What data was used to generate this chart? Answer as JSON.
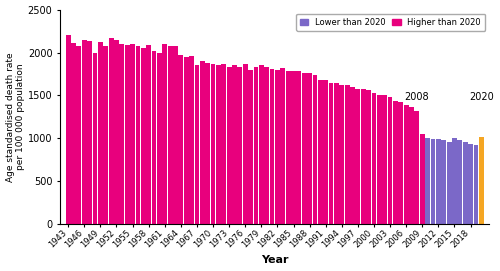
{
  "title": "",
  "ylabel": "Age standardised death rate\nper 100 000 population",
  "xlabel": "Year",
  "ylim": [
    0,
    2500
  ],
  "yticks": [
    0,
    500,
    1000,
    1500,
    2000,
    2500
  ],
  "color_higher": "#E8007D",
  "color_lower": "#7B68C8",
  "color_2020": "#F5A623",
  "legend_lower": "Lower than 2020",
  "legend_higher": "Higher than 2020",
  "annotation_2008": "2008",
  "annotation_2020": "2020",
  "years": [
    1943,
    1944,
    1945,
    1946,
    1947,
    1948,
    1949,
    1950,
    1951,
    1952,
    1953,
    1954,
    1955,
    1956,
    1957,
    1958,
    1959,
    1960,
    1961,
    1962,
    1963,
    1964,
    1965,
    1966,
    1967,
    1968,
    1969,
    1970,
    1971,
    1972,
    1973,
    1974,
    1975,
    1976,
    1977,
    1978,
    1979,
    1980,
    1981,
    1982,
    1983,
    1984,
    1985,
    1986,
    1987,
    1988,
    1989,
    1990,
    1991,
    1992,
    1993,
    1994,
    1995,
    1996,
    1997,
    1998,
    1999,
    2000,
    2001,
    2002,
    2003,
    2004,
    2005,
    2006,
    2007,
    2008,
    2009,
    2010,
    2011,
    2012,
    2013,
    2014,
    2015,
    2016,
    2017,
    2018,
    2019,
    2020
  ],
  "values": [
    2200,
    2110,
    2080,
    2150,
    2130,
    2000,
    2120,
    2080,
    2170,
    2150,
    2100,
    2090,
    2100,
    2080,
    2050,
    2090,
    2020,
    2000,
    2100,
    2080,
    2080,
    1970,
    1950,
    1960,
    1860,
    1900,
    1880,
    1870,
    1860,
    1870,
    1830,
    1850,
    1830,
    1870,
    1800,
    1830,
    1850,
    1830,
    1810,
    1800,
    1820,
    1780,
    1790,
    1780,
    1760,
    1760,
    1740,
    1680,
    1680,
    1650,
    1640,
    1620,
    1620,
    1600,
    1580,
    1570,
    1560,
    1530,
    1510,
    1500,
    1480,
    1440,
    1420,
    1390,
    1370,
    1320,
    1050,
    1010,
    990,
    990,
    980,
    960,
    1000,
    980,
    960,
    940,
    920,
    1020
  ],
  "value_2020": 1020,
  "figsize": [
    5.0,
    2.71
  ],
  "dpi": 100
}
